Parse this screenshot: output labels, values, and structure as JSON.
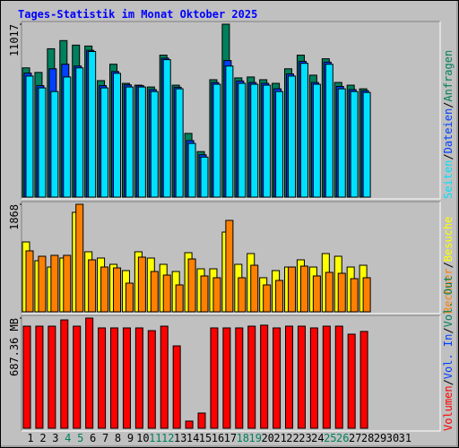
{
  "title": "Tages-Statistik im Monat Oktober 2025",
  "legend_separator": "/",
  "chart_data": [
    {
      "type": "bar",
      "ylim": [
        0,
        11017
      ],
      "yticks": [
        11017
      ],
      "categories": [
        "1",
        "2",
        "3",
        "4",
        "5",
        "6",
        "7",
        "8",
        "9",
        "10",
        "11",
        "12",
        "13",
        "14",
        "15",
        "16",
        "17",
        "18",
        "19",
        "20",
        "21",
        "22",
        "23",
        "24",
        "25",
        "26",
        "27",
        "28",
        "29",
        "30",
        "31"
      ],
      "series": [
        {
          "name": "Anfragen",
          "color": "#00805C",
          "values": [
            8234,
            7944,
            9451,
            9973,
            9683,
            9625,
            7422,
            8466,
            7248,
            7132,
            7016,
            9045,
            7132,
            4059,
            2899,
            7480,
            11017,
            7596,
            7654,
            7480,
            7248,
            8176,
            9045,
            7770,
            8814,
            7306,
            7132,
            6900,
            null,
            null,
            null
          ]
        },
        {
          "name": "Dateien",
          "color": "#0040FF",
          "values": [
            7900,
            7100,
            8176,
            8466,
            8350,
            9350,
            7100,
            8000,
            7150,
            7100,
            6850,
            8850,
            7000,
            3600,
            2700,
            7300,
            8698,
            7400,
            7300,
            7250,
            6900,
            7850,
            8650,
            7300,
            8600,
            7050,
            6850,
            6780,
            null,
            null,
            null
          ]
        },
        {
          "name": "Seiten",
          "color": "#00E0FF",
          "values": [
            7712,
            6958,
            6726,
            7654,
            8234,
            9277,
            6958,
            7886,
            7016,
            7016,
            6726,
            8756,
            6900,
            3421,
            2551,
            7190,
            8350,
            7248,
            7190,
            7132,
            6726,
            7712,
            8524,
            7190,
            8466,
            6900,
            6726,
            6668,
            null,
            null,
            null
          ]
        }
      ]
    },
    {
      "type": "bar",
      "ylim": [
        0,
        1868
      ],
      "yticks": [
        1868
      ],
      "categories": [
        "1",
        "2",
        "3",
        "4",
        "5",
        "6",
        "7",
        "8",
        "9",
        "10",
        "11",
        "12",
        "13",
        "14",
        "15",
        "16",
        "17",
        "18",
        "19",
        "20",
        "21",
        "22",
        "23",
        "24",
        "25",
        "26",
        "27",
        "28",
        "29",
        "30",
        "31"
      ],
      "series": [
        {
          "name": "Besuche",
          "color": "#FFFF00",
          "values": [
            1214,
            887,
            778,
            934,
            1728,
            1043,
            934,
            825,
            716,
            1043,
            934,
            825,
            700,
            1027,
            747,
            747,
            1385,
            825,
            1012,
            592,
            716,
            778,
            903,
            778,
            1012,
            965,
            778,
            809,
            null,
            null,
            null
          ]
        },
        {
          "name": "Rechner",
          "color": "#FF8000",
          "values": [
            1059,
            965,
            981,
            981,
            1868,
            903,
            778,
            763,
            498,
            950,
            700,
            638,
            467,
            918,
            623,
            592,
            1588,
            592,
            809,
            467,
            545,
            778,
            794,
            623,
            685,
            669,
            576,
            592,
            null,
            null,
            null
          ]
        }
      ]
    },
    {
      "type": "bar",
      "ylim": [
        0,
        687.36
      ],
      "yticks": [
        {
          "value": 687.36,
          "label": "687.36 MB"
        }
      ],
      "categories": [
        "1",
        "2",
        "3",
        "4",
        "5",
        "6",
        "7",
        "8",
        "9",
        "10",
        "11",
        "12",
        "13",
        "14",
        "15",
        "16",
        "17",
        "18",
        "19",
        "20",
        "21",
        "22",
        "23",
        "24",
        "25",
        "26",
        "27",
        "28",
        "29",
        "30",
        "31"
      ],
      "weekends": [
        "4",
        "5",
        "11",
        "12",
        "18",
        "19",
        "25",
        "26"
      ],
      "weekend_color": "#00805C",
      "weekday_color": "#000000",
      "extra_legend": [
        {
          "name": "Vol. Out",
          "color": "#00805C"
        },
        {
          "name": "Vol. In",
          "color": "#0040FF"
        }
      ],
      "series": [
        {
          "name": "Volumen",
          "color": "#FF0000",
          "values": [
            637,
            637,
            637,
            676,
            637,
            687.36,
            626,
            626,
            626,
            626,
            609,
            637,
            514,
            45,
            95,
            626,
            626,
            626,
            637,
            643,
            626,
            637,
            637,
            626,
            637,
            637,
            587,
            604,
            null,
            null,
            null
          ]
        }
      ]
    }
  ]
}
